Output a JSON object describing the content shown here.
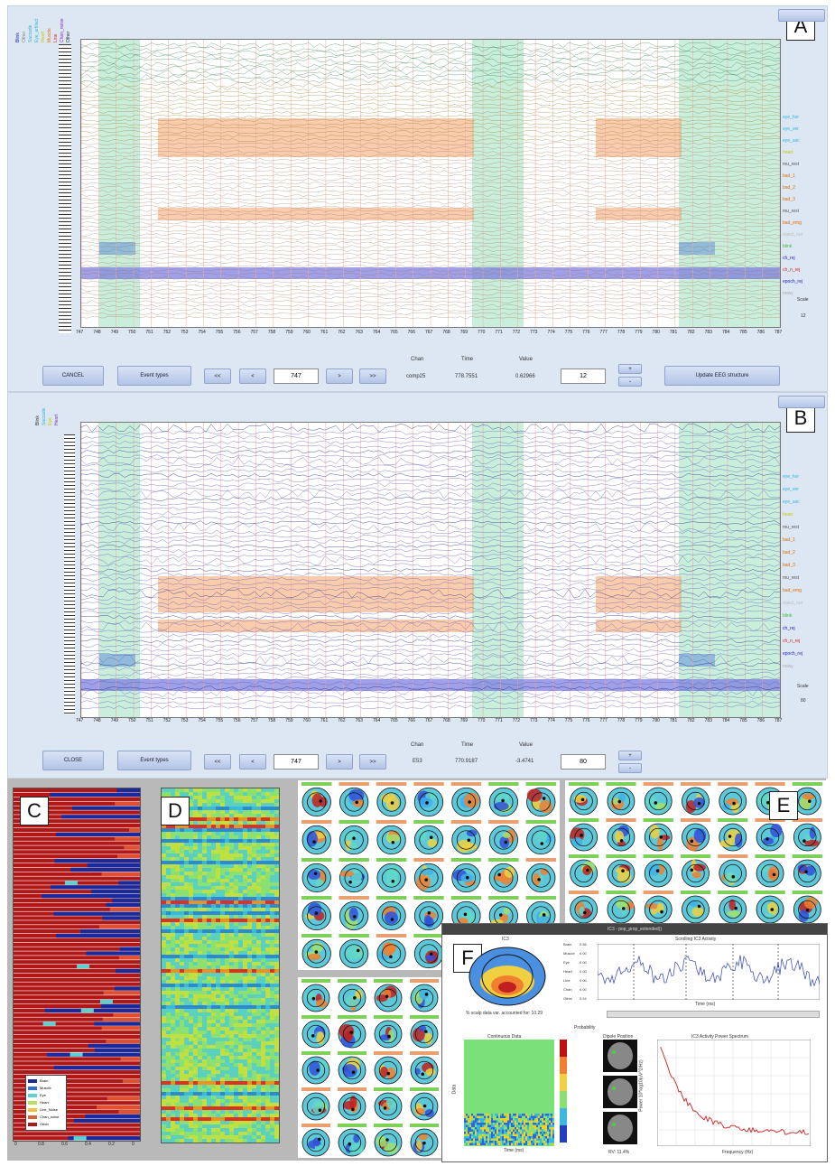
{
  "panel_a": {
    "tag": "A",
    "buttons": {
      "cancel": "CANCEL",
      "event_types": "Event types",
      "first": "<<",
      "prev": "<",
      "next": ">",
      "last": ">>",
      "update": "Update EEG structure",
      "up": "+",
      "down": "-"
    },
    "time_value": "747",
    "readout": {
      "chan_label": "Chan",
      "time_label": "Time",
      "value_label": "Value",
      "chan": "comp25",
      "time": "778.7551",
      "value": "0.62966"
    },
    "scale_value": "12",
    "scale_label": "Scale",
    "scale_num": "12",
    "x_ticks": [
      "747",
      "748",
      "749",
      "750",
      "751",
      "752",
      "753",
      "754",
      "755",
      "756",
      "757",
      "758",
      "759",
      "760",
      "761",
      "762",
      "763",
      "764",
      "765",
      "766",
      "767",
      "768",
      "769",
      "770",
      "771",
      "772",
      "773",
      "774",
      "775",
      "776",
      "777",
      "778",
      "779",
      "780",
      "781",
      "782",
      "783",
      "784",
      "785",
      "786",
      "787"
    ],
    "legend": [
      "Blink",
      "Other",
      "Saccade",
      "Eye_artifact",
      "Heart",
      "Muscle",
      "Line",
      "Chan_noise",
      "Other"
    ],
    "right_labels": [
      {
        "text": "eye_hor",
        "color": "#2ab8d8"
      },
      {
        "text": "eye_ver",
        "color": "#2ab8d8"
      },
      {
        "text": "eye_sac",
        "color": "#2ab8d8"
      },
      {
        "text": "heart",
        "color": "#c8c800"
      },
      {
        "text": "mu_rest",
        "color": "#555"
      },
      {
        "text": "bad_1",
        "color": "#e07000"
      },
      {
        "text": "bad_2",
        "color": "#e07000"
      },
      {
        "text": "bad_3",
        "color": "#e07000"
      },
      {
        "text": "mu_rest",
        "color": "#555"
      },
      {
        "text": "bad_emg",
        "color": "#e07000"
      },
      {
        "text": "reject_run",
        "color": "#bbb"
      },
      {
        "text": "blink",
        "color": "#38c038"
      },
      {
        "text": "ch_rej",
        "color": "#2020c0"
      },
      {
        "text": "ch_n_rej",
        "color": "#e02020"
      },
      {
        "text": "epoch_rej",
        "color": "#2020c0"
      },
      {
        "text": "noisy",
        "color": "#aaa"
      }
    ]
  },
  "panel_b": {
    "tag": "B",
    "buttons": {
      "close": "CLOSE",
      "event_types": "Event types",
      "first": "<<",
      "prev": "<",
      "next": ">",
      "last": ">>",
      "up": "+",
      "down": "-"
    },
    "time_value": "747",
    "readout": {
      "chan_label": "Chan",
      "time_label": "Time",
      "value_label": "Value",
      "chan": "E53",
      "time": "770.9187",
      "value": "-3.4741"
    },
    "scale_value": "80",
    "scale_label": "Scale",
    "scale_num": "80",
    "legend": [
      "Blink",
      "Saccade",
      "Eye",
      "Heart"
    ]
  },
  "panel_c": {
    "tag": "C",
    "x_ticks": [
      "0",
      "0.8",
      "0.6",
      "0.4",
      "0.2",
      "0"
    ],
    "legend": [
      "Brain",
      "Muscle",
      "Eye",
      "Heart",
      "Line_Noise",
      "Chan_noise",
      "Other"
    ],
    "legend_colors": [
      "#1a2a9a",
      "#2e6fd8",
      "#5ad2d2",
      "#b7e05c",
      "#f0c040",
      "#e06030",
      "#b01818"
    ]
  },
  "panel_d": {
    "tag": "D"
  },
  "panel_e": {
    "tag": "E"
  },
  "panel_f": {
    "tag": "F",
    "window_title": "IC3 - pop_prop_extended()",
    "ic_title": "IC3",
    "prob_labels": [
      "Brain",
      "Muscle",
      "Eye",
      "Heart",
      "Line",
      "Chan",
      "Other"
    ],
    "prob_values": [
      "0.56",
      "0.00",
      "0.00",
      "0.00",
      "0.00",
      "0.00",
      "0.44"
    ],
    "prob_axis": "Probability",
    "caption": "% scalp data var. accounted for: 10.29",
    "erp_title": "Continuous Data",
    "erp_xlabel": "Time (ms)",
    "erp_ylabel": "Data",
    "timecourse_title": "Scrolling IC3 Activity",
    "timecourse_xlabel": "Time (ms)",
    "dipole_title": "Dipole Position",
    "dipole_rv": "RV: 11.4%",
    "spectrum_title": "IC3 Activity Power Spectrum",
    "spectrum_xlabel": "Frequency (Hz)",
    "spectrum_ylabel": "Power 10*log10(uV^2/Hz)"
  }
}
